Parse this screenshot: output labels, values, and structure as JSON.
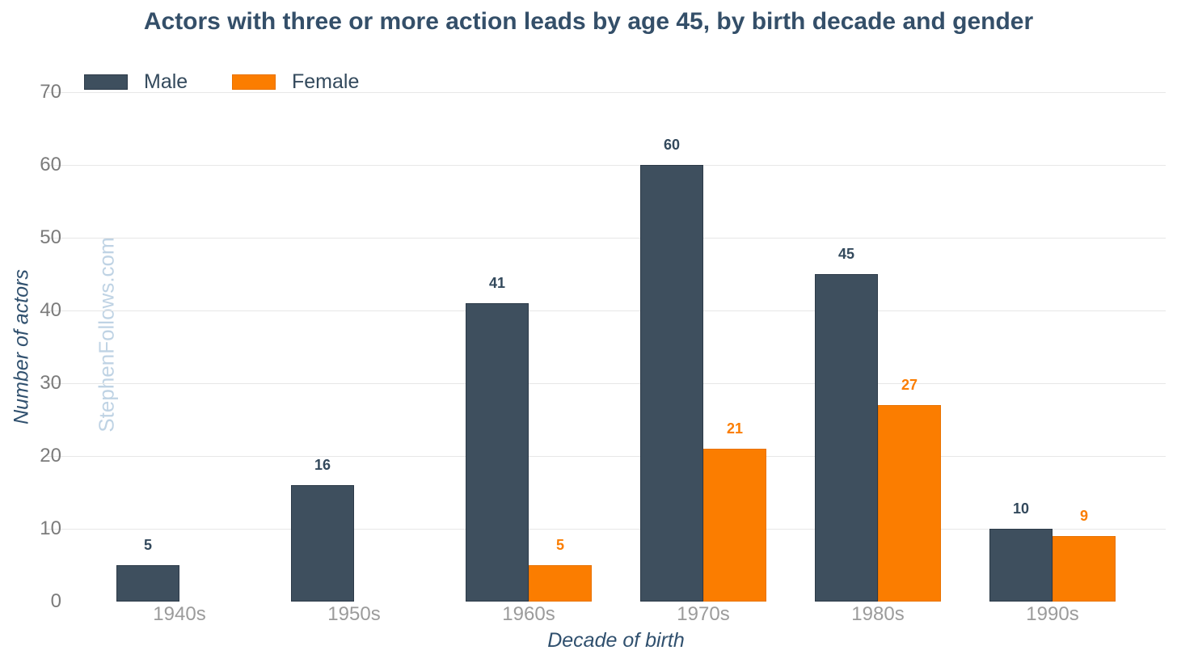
{
  "title": "Actors with three or more action leads by age 45, by birth decade and gender",
  "watermark": "StephenFollows.com",
  "colors": {
    "male": "#3e4f5e",
    "male_border": "#2c3a48",
    "female": "#fb7d00",
    "female_border": "#e87200",
    "title_text": "#344f69",
    "axis_title_text": "#30506e",
    "y_tick_text": "#7b7b7b",
    "x_tick_text": "#9b9b9b",
    "gridline": "#e7e7e7",
    "watermark_text": "#bfd3e4",
    "background": "#ffffff"
  },
  "chart_data": {
    "type": "bar",
    "title": "Actors with three or more action leads by age 45, by birth decade and gender",
    "categories": [
      "1940s",
      "1950s",
      "1960s",
      "1970s",
      "1980s",
      "1990s"
    ],
    "series": [
      {
        "name": "Male",
        "color": "#3e4f5e",
        "values": [
          5,
          16,
          41,
          60,
          45,
          10
        ]
      },
      {
        "name": "Female",
        "color": "#fb7d00",
        "values": [
          0,
          0,
          5,
          21,
          27,
          9
        ]
      }
    ],
    "xlabel": "Decade of birth",
    "ylabel": "Number of actors",
    "ylim": [
      0,
      70
    ],
    "yticks": [
      0,
      10,
      20,
      30,
      40,
      50,
      60,
      70
    ],
    "grid": true,
    "grid_note": "horizontal gridlines at 10-70 only, none at 0",
    "legend_position": "top-left",
    "value_labels": "above bars, zero values hidden"
  }
}
